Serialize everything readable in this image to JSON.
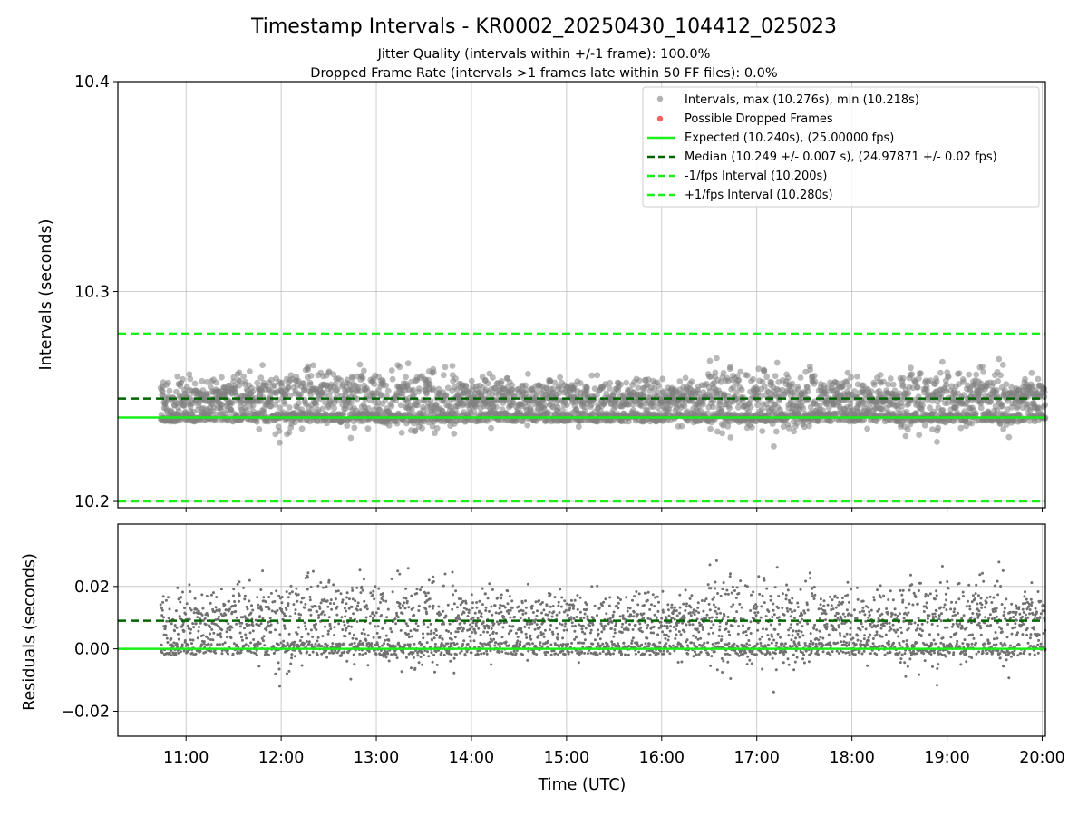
{
  "chart_data": [
    {
      "type": "scatter",
      "title": "Timestamp Intervals - KR0002_20250430_104412_025023",
      "subtitle_lines": [
        "Jitter Quality (intervals within +/-1 frame): 100.0%",
        "Dropped Frame Rate (intervals >1 frames late within 50 FF files): 0.0%"
      ],
      "ylabel": "Intervals (seconds)",
      "ylim": [
        10.197,
        10.4
      ],
      "yticks": [
        "10.2",
        "10.3",
        "10.4"
      ],
      "xlim": [
        "10:17",
        "20:02"
      ],
      "grid": true,
      "legend_position": "upper right",
      "legend": [
        "Intervals, max (10.276s), min (10.218s)",
        "Possible Dropped Frames",
        "Expected (10.240s), (25.00000 fps)",
        "Median (10.249 +/- 0.007 s), (24.97871 +/- 0.02 fps)",
        "-1/fps Interval (10.200s)",
        "+1/fps Interval (10.280s)"
      ],
      "reference_lines": {
        "expected": 10.24,
        "median": 10.249,
        "minus_one_fps": 10.2,
        "plus_one_fps": 10.28
      },
      "series": {
        "start": "10:44",
        "end": "20:02",
        "max": 10.276,
        "min": 10.218,
        "median": 10.249,
        "expected": 10.24
      },
      "colors": {
        "points": "#808080",
        "dropped": "#f0605d",
        "expected": "#1aef1a",
        "median": "#006400",
        "fps_bounds": "#1aef1a"
      }
    },
    {
      "type": "scatter",
      "ylabel": "Residuals (seconds)",
      "xlabel": "Time (UTC)",
      "ylim": [
        -0.028,
        0.04
      ],
      "yticks": [
        "−0.02",
        "0.00",
        "0.02"
      ],
      "xticks": [
        "11:00",
        "12:00",
        "13:00",
        "14:00",
        "15:00",
        "16:00",
        "17:00",
        "18:00",
        "19:00",
        "20:00"
      ],
      "grid": true,
      "reference_lines": {
        "zero": 0.0,
        "median_residual": 0.009
      },
      "colors": {
        "points": "#707070",
        "zero": "#1aef1a",
        "median": "#006400"
      }
    }
  ]
}
